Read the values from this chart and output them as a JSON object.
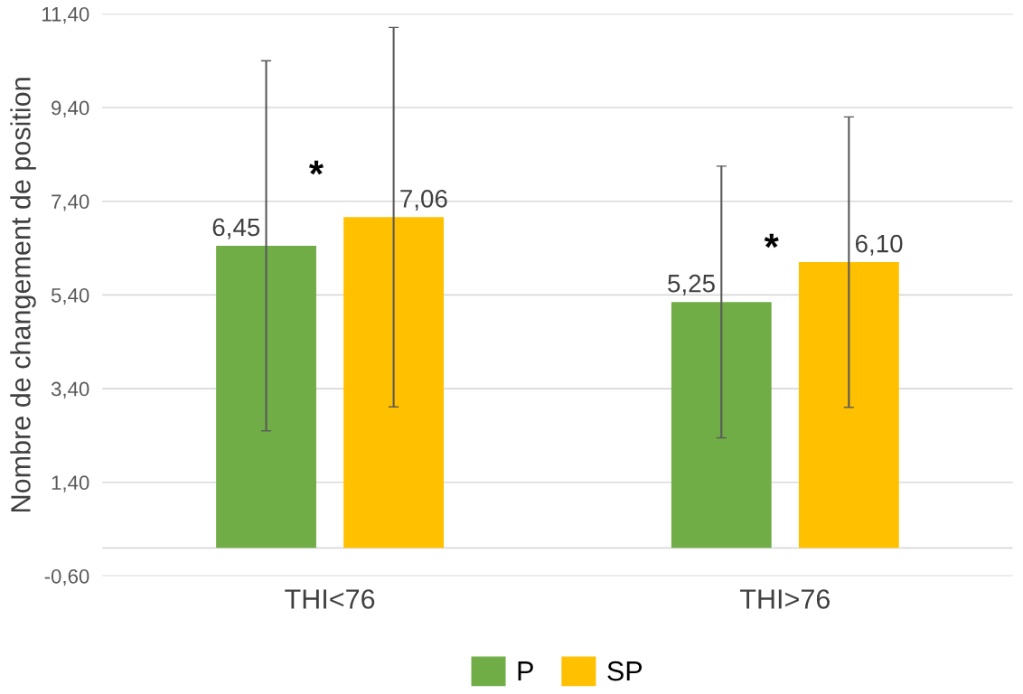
{
  "chart_data": {
    "type": "bar",
    "ylabel": "Nombre de changement de position",
    "categories": [
      "THI<76",
      "THI>76"
    ],
    "series": [
      {
        "name": "P",
        "color": "#70ad47",
        "values": [
          6.45,
          5.25
        ],
        "errors": [
          3.95,
          2.9
        ],
        "value_labels": [
          "6,45",
          "5,25"
        ]
      },
      {
        "name": "SP",
        "color": "#ffc000",
        "values": [
          7.06,
          6.1
        ],
        "errors": [
          4.05,
          3.1
        ],
        "value_labels": [
          "7,06",
          "6,10"
        ]
      }
    ],
    "ylim": [
      -0.6,
      11.4
    ],
    "yticks": [
      {
        "value": -0.6,
        "label": "-0,60"
      },
      {
        "value": 1.4,
        "label": "1,40"
      },
      {
        "value": 3.4,
        "label": "3,40"
      },
      {
        "value": 5.4,
        "label": "5,40"
      },
      {
        "value": 7.4,
        "label": "7,40"
      },
      {
        "value": 9.4,
        "label": "9,40"
      },
      {
        "value": 11.4,
        "label": "11,40"
      }
    ],
    "grid": "y",
    "legend": "bottom",
    "annotations": [
      "*",
      "*"
    ]
  }
}
